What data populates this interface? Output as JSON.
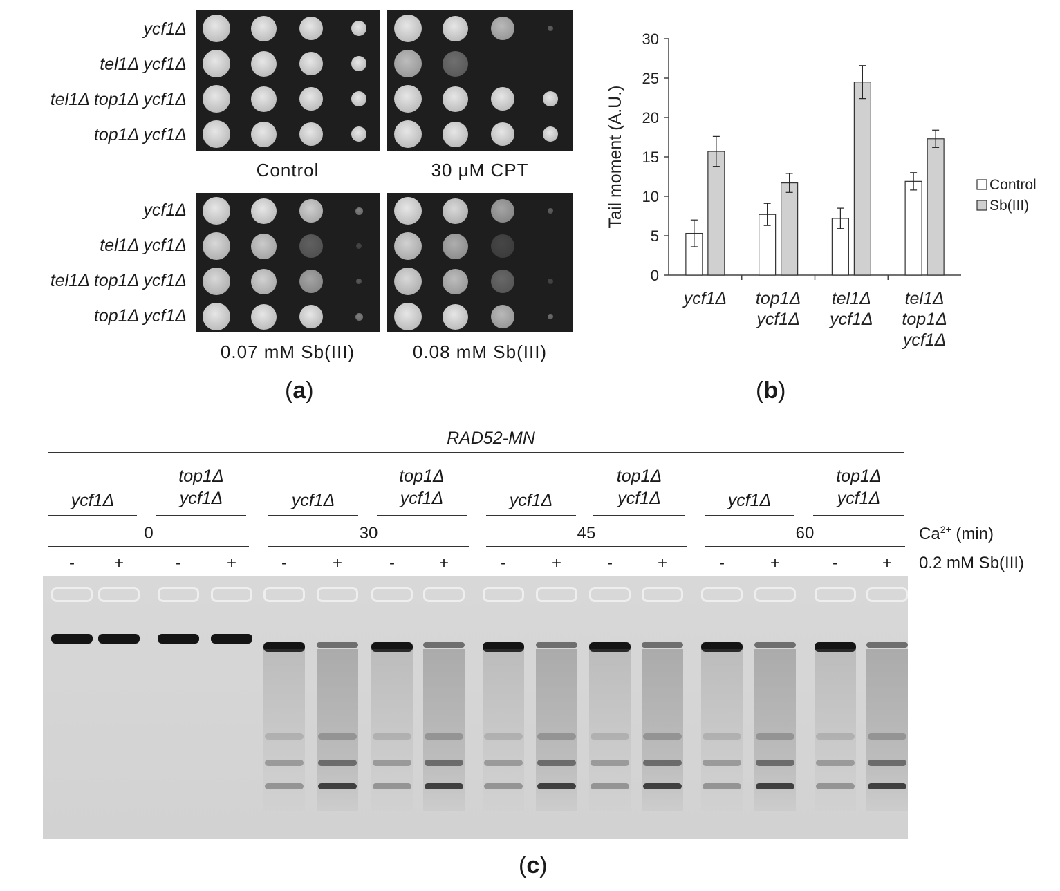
{
  "panel_a": {
    "strains_top": [
      "ycf1Δ",
      "tel1Δ ycf1Δ",
      "tel1Δ top1Δ ycf1Δ",
      "top1Δ ycf1Δ"
    ],
    "strains_bottom": [
      "ycf1Δ",
      "tel1Δ ycf1Δ",
      "tel1Δ top1Δ ycf1Δ",
      "top1Δ ycf1Δ"
    ],
    "conditions": [
      "Control",
      "30 μM CPT",
      "0.07 mM Sb(III)",
      "0.08 mM Sb(III)"
    ],
    "label_open": "(",
    "label_letter": "a",
    "label_close": ")"
  },
  "panel_b": {
    "label_open": "(",
    "label_letter": "b",
    "label_close": ")"
  },
  "chart_data": {
    "type": "bar",
    "ylabel": "Tail moment  (A.U.)",
    "xlabel": "",
    "ylim": [
      0,
      30
    ],
    "yticks": [
      0,
      5,
      10,
      15,
      20,
      25,
      30
    ],
    "categories": [
      [
        "ycf1Δ"
      ],
      [
        "top1Δ",
        "ycf1Δ"
      ],
      [
        "tel1Δ",
        "ycf1Δ"
      ],
      [
        "tel1Δ",
        "top1Δ",
        "ycf1Δ"
      ]
    ],
    "series": [
      {
        "name": "Control",
        "values": [
          5.3,
          7.7,
          7.2,
          11.9
        ],
        "errors": [
          1.7,
          1.4,
          1.3,
          1.1
        ],
        "color": "#ffffff"
      },
      {
        "name": "Sb(III)",
        "values": [
          15.7,
          11.7,
          24.5,
          17.3
        ],
        "errors": [
          1.9,
          1.2,
          2.1,
          1.1
        ],
        "color": "#d0d0d0"
      }
    ],
    "legend_position": "right",
    "grid": false
  },
  "panel_c": {
    "header": "RAD52-MN",
    "groups": [
      {
        "time": "0",
        "genotypes": [
          {
            "line1": "",
            "line2": "ycf1Δ"
          },
          {
            "line1": "top1Δ",
            "line2": "ycf1Δ"
          }
        ]
      },
      {
        "time": "30",
        "genotypes": [
          {
            "line1": "",
            "line2": "ycf1Δ"
          },
          {
            "line1": "top1Δ",
            "line2": "ycf1Δ"
          }
        ]
      },
      {
        "time": "45",
        "genotypes": [
          {
            "line1": "",
            "line2": "ycf1Δ"
          },
          {
            "line1": "top1Δ",
            "line2": "ycf1Δ"
          }
        ]
      },
      {
        "time": "60",
        "genotypes": [
          {
            "line1": "",
            "line2": "ycf1Δ"
          },
          {
            "line1": "top1Δ",
            "line2": "ycf1Δ"
          }
        ]
      }
    ],
    "signs": [
      "-",
      "+",
      "-",
      "+",
      "-",
      "+",
      "-",
      "+",
      "-",
      "+",
      "-",
      "+",
      "-",
      "+",
      "-",
      "+"
    ],
    "row_label_time": "Ca",
    "row_label_time_sup": "2+",
    "row_label_time_unit": " (min)",
    "row_label_treatment": "0.2 mM Sb(III)",
    "label_open": "(",
    "label_letter": "c",
    "label_close": ")"
  }
}
